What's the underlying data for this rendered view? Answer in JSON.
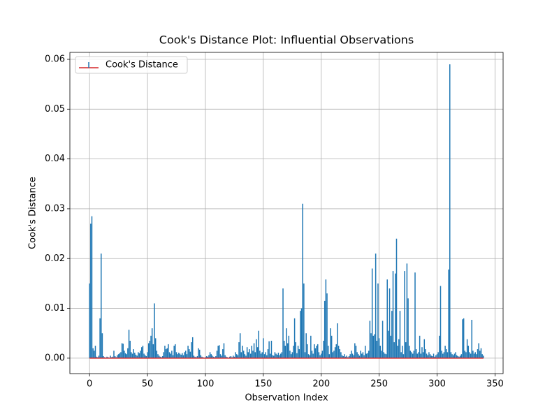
{
  "chart_data": {
    "type": "stem",
    "title": "Cook's Distance Plot: Influential Observations",
    "x_label": "Observation Index",
    "y_label": "Cook's Distance",
    "xlim": [
      -17,
      357
    ],
    "ylim": [
      -0.0031,
      0.0614
    ],
    "xticks": [
      0,
      50,
      100,
      150,
      200,
      250,
      300,
      350
    ],
    "yticks": [
      {
        "value": 0,
        "label": "0.00"
      },
      {
        "value": 0.01,
        "label": "0.01"
      },
      {
        "value": 0.02,
        "label": "0.02"
      },
      {
        "value": 0.03,
        "label": "0.03"
      },
      {
        "value": 0.04,
        "label": "0.04"
      },
      {
        "value": 0.05,
        "label": "0.05"
      },
      {
        "value": 0.06,
        "label": "0.06"
      }
    ],
    "grid": true,
    "legend": "upper left",
    "baseline_color": "#d62728",
    "x": [
      0,
      1,
      2,
      3,
      4,
      5,
      6,
      7,
      8,
      9,
      10,
      11,
      12,
      13,
      14,
      15,
      16,
      17,
      18,
      19,
      20,
      21,
      22,
      23,
      24,
      25,
      26,
      27,
      28,
      29,
      30,
      31,
      32,
      33,
      34,
      35,
      36,
      37,
      38,
      39,
      40,
      41,
      42,
      43,
      44,
      45,
      46,
      47,
      48,
      49,
      50,
      51,
      52,
      53,
      54,
      55,
      56,
      57,
      58,
      59,
      60,
      61,
      62,
      63,
      64,
      65,
      66,
      67,
      68,
      69,
      70,
      71,
      72,
      73,
      74,
      75,
      76,
      77,
      78,
      79,
      80,
      81,
      82,
      83,
      84,
      85,
      86,
      87,
      88,
      89,
      90,
      91,
      92,
      93,
      94,
      95,
      96,
      97,
      98,
      99,
      100,
      101,
      102,
      103,
      104,
      105,
      106,
      107,
      108,
      109,
      110,
      111,
      112,
      113,
      114,
      115,
      116,
      117,
      118,
      119,
      120,
      121,
      122,
      123,
      124,
      125,
      126,
      127,
      128,
      129,
      130,
      131,
      132,
      133,
      134,
      135,
      136,
      137,
      138,
      139,
      140,
      141,
      142,
      143,
      144,
      145,
      146,
      147,
      148,
      149,
      150,
      151,
      152,
      153,
      154,
      155,
      156,
      157,
      158,
      159,
      160,
      161,
      162,
      163,
      164,
      165,
      166,
      167,
      168,
      169,
      170,
      171,
      172,
      173,
      174,
      175,
      176,
      177,
      178,
      179,
      180,
      181,
      182,
      183,
      184,
      185,
      186,
      187,
      188,
      189,
      190,
      191,
      192,
      193,
      194,
      195,
      196,
      197,
      198,
      199,
      200,
      201,
      202,
      203,
      204,
      205,
      206,
      207,
      208,
      209,
      210,
      211,
      212,
      213,
      214,
      215,
      216,
      217,
      218,
      219,
      220,
      221,
      222,
      223,
      224,
      225,
      226,
      227,
      228,
      229,
      230,
      231,
      232,
      233,
      234,
      235,
      236,
      237,
      238,
      239,
      240,
      241,
      242,
      243,
      244,
      245,
      246,
      247,
      248,
      249,
      250,
      251,
      252,
      253,
      254,
      255,
      256,
      257,
      258,
      259,
      260,
      261,
      262,
      263,
      264,
      265,
      266,
      267,
      268,
      269,
      270,
      271,
      272,
      273,
      274,
      275,
      276,
      277,
      278,
      279,
      280,
      281,
      282,
      283,
      284,
      285,
      286,
      287,
      288,
      289,
      290,
      291,
      292,
      293,
      294,
      295,
      296,
      297,
      298,
      299,
      300,
      301,
      302,
      303,
      304,
      305,
      306,
      307,
      308,
      309,
      310,
      311,
      312,
      313,
      314,
      315,
      316,
      317,
      318,
      319,
      320,
      321,
      322,
      323,
      324,
      325,
      326,
      327,
      328,
      329,
      330,
      331,
      332,
      333,
      334,
      335,
      336,
      337,
      338,
      339,
      340
    ],
    "series": [
      {
        "name": "Cook's Distance",
        "color": "#1f77b4",
        "values": [
          0.015,
          0.027,
          0.0285,
          0.002,
          0.0015,
          0.0025,
          0.0003,
          0.0002,
          0.0005,
          0.008,
          0.021,
          0.005,
          0.0004,
          0.0002,
          0.0001,
          0.0003,
          0.0002,
          0.0001,
          0.0005,
          0.0002,
          0.0003,
          0.0015,
          0.0004,
          0.0002,
          0.0006,
          0.0008,
          0.001,
          0.0012,
          0.003,
          0.0029,
          0.0015,
          0.001,
          0.0008,
          0.002,
          0.0057,
          0.0035,
          0.0012,
          0.0009,
          0.0018,
          0.0011,
          0.0007,
          0.0005,
          0.0012,
          0.001,
          0.0015,
          0.0022,
          0.0025,
          0.0009,
          0.0006,
          0.0004,
          0.0012,
          0.003,
          0.0035,
          0.0045,
          0.006,
          0.0028,
          0.011,
          0.004,
          0.0015,
          0.0008,
          0.0005,
          0.0003,
          0.0002,
          0.0004,
          0.0012,
          0.0025,
          0.0018,
          0.002,
          0.0028,
          0.0012,
          0.0009,
          0.0015,
          0.0006,
          0.0025,
          0.0028,
          0.0012,
          0.0008,
          0.0011,
          0.0009,
          0.0007,
          0.001,
          0.0006,
          0.0012,
          0.0015,
          0.0008,
          0.0025,
          0.0018,
          0.0013,
          0.0032,
          0.0042,
          0.0005,
          0.0003,
          0.0002,
          0.0004,
          0.002,
          0.0017,
          0.0006,
          0.0003,
          0.0002,
          0.0001,
          0.0002,
          0.0004,
          0.0003,
          0.0006,
          0.0012,
          0.0008,
          0.0005,
          0.0003,
          0.0002,
          0.0004,
          0.0015,
          0.0025,
          0.0026,
          0.0008,
          0.0005,
          0.0018,
          0.003,
          0.0006,
          0.0003,
          0.0002,
          0.0001,
          0.0003,
          0.0004,
          0.0002,
          0.0005,
          0.0003,
          0.0012,
          0.0008,
          0.0006,
          0.0032,
          0.005,
          0.0012,
          0.0025,
          0.0015,
          0.0008,
          0.0005,
          0.0022,
          0.0012,
          0.0018,
          0.0009,
          0.0025,
          0.0015,
          0.003,
          0.0012,
          0.0038,
          0.0022,
          0.0055,
          0.0015,
          0.0009,
          0.0012,
          0.004,
          0.0008,
          0.0012,
          0.0006,
          0.0018,
          0.0034,
          0.0009,
          0.0035,
          0.0006,
          0.0005,
          0.0012,
          0.0009,
          0.0007,
          0.0011,
          0.0006,
          0.0009,
          0.0012,
          0.014,
          0.0035,
          0.0025,
          0.006,
          0.003,
          0.0045,
          0.0015,
          0.0008,
          0.0012,
          0.0025,
          0.008,
          0.0032,
          0.001,
          0.0025,
          0.0018,
          0.0095,
          0.01,
          0.031,
          0.015,
          0.0012,
          0.005,
          0.0028,
          0.0008,
          0.0006,
          0.0045,
          0.0015,
          0.0009,
          0.0028,
          0.002,
          0.0025,
          0.0028,
          0.0012,
          0.0006,
          0.0009,
          0.0015,
          0.0035,
          0.0115,
          0.0158,
          0.013,
          0.0025,
          0.0008,
          0.006,
          0.0045,
          0.0012,
          0.0015,
          0.0022,
          0.0028,
          0.007,
          0.0025,
          0.0018,
          0.0012,
          0.0006,
          0.0004,
          0.0008,
          0.0003,
          0.0005,
          0.0002,
          0.0004,
          0.0008,
          0.0015,
          0.0009,
          0.0006,
          0.003,
          0.0025,
          0.0012,
          0.0008,
          0.0005,
          0.0015,
          0.0009,
          0.0012,
          0.0006,
          0.0025,
          0.0009,
          0.001,
          0.0015,
          0.0075,
          0.005,
          0.018,
          0.0045,
          0.0048,
          0.021,
          0.0035,
          0.015,
          0.004,
          0.0025,
          0.0015,
          0.0075,
          0.0012,
          0.0009,
          0.0008,
          0.0158,
          0.0055,
          0.014,
          0.0045,
          0.0095,
          0.0175,
          0.0032,
          0.017,
          0.024,
          0.0025,
          0.0038,
          0.0095,
          0.0012,
          0.0025,
          0.0008,
          0.0175,
          0.0032,
          0.019,
          0.012,
          0.0025,
          0.0015,
          0.0012,
          0.0009,
          0.0015,
          0.0172,
          0.0018,
          0.0009,
          0.0012,
          0.0045,
          0.0009,
          0.0022,
          0.0012,
          0.0038,
          0.0018,
          0.0009,
          0.0006,
          0.0012,
          0.0008,
          0.0005,
          0.0004,
          0.0009,
          0.0003,
          0.0006,
          0.0008,
          0.0012,
          0.0045,
          0.0145,
          0.0015,
          0.0009,
          0.0012,
          0.0025,
          0.0018,
          0.0012,
          0.0178,
          0.059,
          0.0012,
          0.0008,
          0.0006,
          0.0009,
          0.0012,
          0.0006,
          0.0004,
          0.0003,
          0.0005,
          0.0008,
          0.0078,
          0.008,
          0.0015,
          0.0012,
          0.0038,
          0.0025,
          0.0012,
          0.0009,
          0.0077,
          0.0015,
          0.0009,
          0.0012,
          0.0008,
          0.0018,
          0.003,
          0.0015,
          0.002,
          0.0008,
          0.0005
        ]
      }
    ]
  }
}
